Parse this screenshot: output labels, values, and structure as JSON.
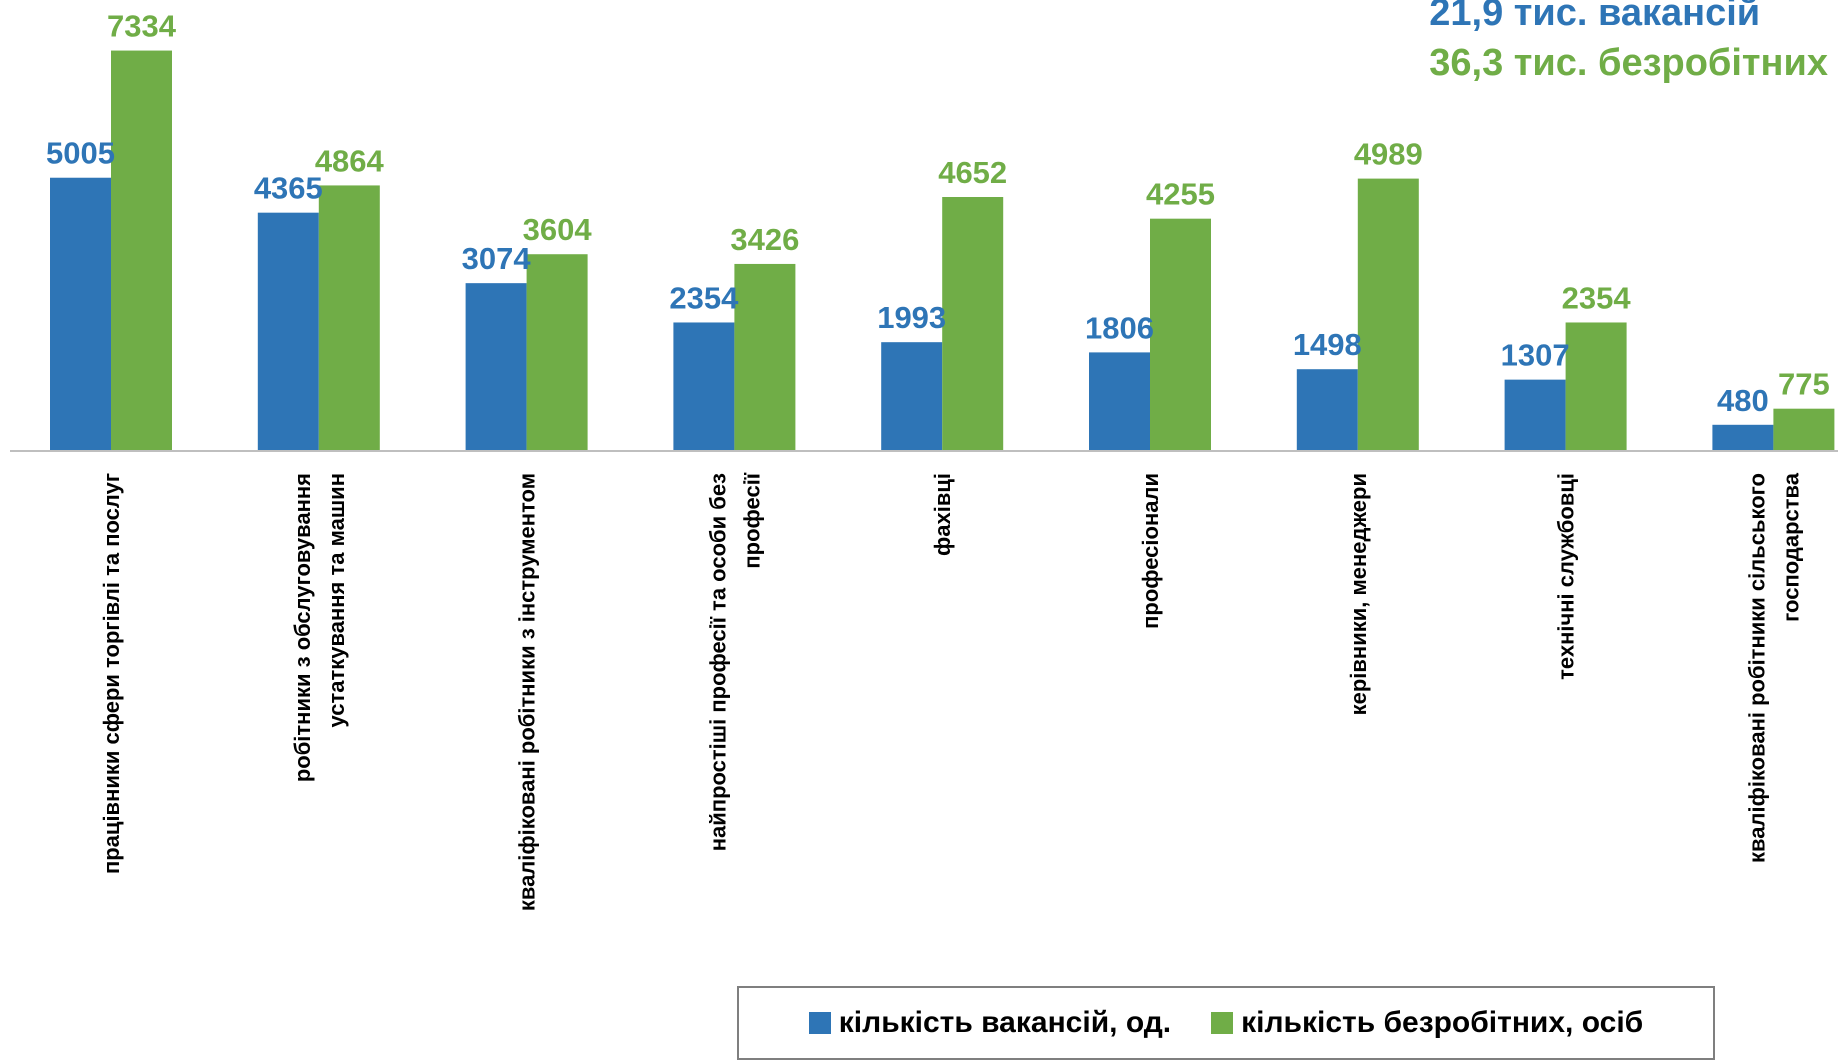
{
  "summary": {
    "vacancies_text": "21,9 тис. вакансій",
    "unemployed_text": "36,3 тис. безробітних"
  },
  "colors": {
    "vacancies": "#2e75b6",
    "unemployed": "#70ad47",
    "axis": "#bfbfbf"
  },
  "chart_data": {
    "type": "bar",
    "categories": [
      [
        "працівники сфери торгівлі та послуг"
      ],
      [
        "робітники з обслуговування",
        "устаткування та машин"
      ],
      [
        "кваліфіковані робітники з інструментом"
      ],
      [
        "найпростіші професії та особи без",
        "професії"
      ],
      [
        "фахівці"
      ],
      [
        "професіонали"
      ],
      [
        "керівники, менеджери"
      ],
      [
        "технічні службовці"
      ],
      [
        "кваліфіковані робітники сільського",
        "господарства"
      ]
    ],
    "series": [
      {
        "name": "кількість вакансій, од.",
        "values": [
          5005,
          4365,
          3074,
          2354,
          1993,
          1806,
          1498,
          1307,
          480
        ]
      },
      {
        "name": "кількість безробітних, осіб",
        "values": [
          7334,
          4864,
          3604,
          3426,
          4652,
          4255,
          4989,
          2354,
          775
        ]
      }
    ],
    "legend_position": "bottom-right",
    "grid": false
  }
}
